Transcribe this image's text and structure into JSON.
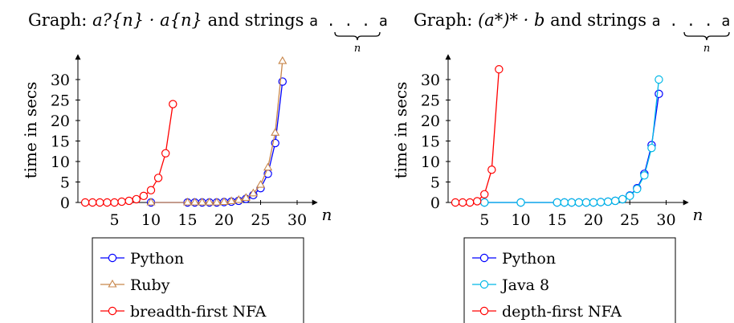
{
  "chart_data": [
    {
      "type": "line",
      "title_prefix": "Graph:",
      "title_math": "a?{n} · a{n}",
      "title_suffix": "and strings",
      "title_string": "a . . . a",
      "title_brace_label": "n",
      "xlabel": "n",
      "ylabel": "time in secs",
      "xlim": [
        0,
        32
      ],
      "ylim": [
        0,
        35
      ],
      "xticks": [
        "5",
        "10",
        "15",
        "20",
        "25",
        "30"
      ],
      "yticks": [
        "0",
        "5",
        "10",
        "15",
        "20",
        "25",
        "30"
      ],
      "legend_position": "bottom",
      "series": [
        {
          "name": "Python",
          "color": "#0000ff",
          "marker": "circle",
          "points": [
            [
              10,
              0
            ],
            [
              15,
              0
            ],
            [
              16,
              0
            ],
            [
              17,
              0
            ],
            [
              18,
              0
            ],
            [
              19,
              0
            ],
            [
              20,
              0.1
            ],
            [
              21,
              0.2
            ],
            [
              22,
              0.4
            ],
            [
              23,
              0.9
            ],
            [
              24,
              1.8
            ],
            [
              25,
              3.5
            ],
            [
              26,
              7
            ],
            [
              27,
              14.5
            ],
            [
              28,
              29.5
            ]
          ]
        },
        {
          "name": "Ruby",
          "color": "#c8864a",
          "marker": "triangle",
          "points": [
            [
              10,
              0
            ],
            [
              15,
              0
            ],
            [
              16,
              0
            ],
            [
              17,
              0
            ],
            [
              18,
              0
            ],
            [
              19,
              0
            ],
            [
              20,
              0.1
            ],
            [
              21,
              0.3
            ],
            [
              22,
              0.6
            ],
            [
              23,
              1.1
            ],
            [
              24,
              2.2
            ],
            [
              25,
              4.3
            ],
            [
              26,
              8.5
            ],
            [
              27,
              17
            ],
            [
              28,
              34.5
            ]
          ]
        },
        {
          "name": "breadth-first NFA",
          "color": "#ff0000",
          "marker": "circle",
          "points": [
            [
              1,
              0
            ],
            [
              2,
              0
            ],
            [
              3,
              0
            ],
            [
              4,
              0
            ],
            [
              5,
              0
            ],
            [
              6,
              0.2
            ],
            [
              7,
              0.4
            ],
            [
              8,
              0.8
            ],
            [
              9,
              1.6
            ],
            [
              10,
              3
            ],
            [
              11,
              6
            ],
            [
              12,
              12
            ],
            [
              13,
              24
            ]
          ]
        }
      ]
    },
    {
      "type": "line",
      "title_prefix": "Graph:",
      "title_math": "(a*)* · b",
      "title_suffix": "and strings",
      "title_string": "a . . . a",
      "title_brace_label": "n",
      "xlabel": "n",
      "ylabel": "time in secs",
      "xlim": [
        0,
        32
      ],
      "ylim": [
        0,
        35
      ],
      "xticks": [
        "5",
        "10",
        "15",
        "20",
        "25",
        "30"
      ],
      "yticks": [
        "0",
        "5",
        "10",
        "15",
        "20",
        "25",
        "30"
      ],
      "legend_position": "bottom",
      "series": [
        {
          "name": "Python",
          "color": "#0000ff",
          "marker": "circle",
          "points": [
            [
              5,
              0
            ],
            [
              10,
              0
            ],
            [
              15,
              0
            ],
            [
              16,
              0
            ],
            [
              17,
              0
            ],
            [
              18,
              0
            ],
            [
              19,
              0
            ],
            [
              20,
              0
            ],
            [
              21,
              0.1
            ],
            [
              22,
              0.2
            ],
            [
              23,
              0.4
            ],
            [
              24,
              0.8
            ],
            [
              25,
              1.7
            ],
            [
              26,
              3.5
            ],
            [
              27,
              7
            ],
            [
              28,
              14
            ],
            [
              29,
              26.5
            ]
          ]
        },
        {
          "name": "Java 8",
          "color": "#00b8e6",
          "marker": "circle",
          "points": [
            [
              5,
              0
            ],
            [
              10,
              0
            ],
            [
              15,
              0
            ],
            [
              16,
              0
            ],
            [
              17,
              0
            ],
            [
              18,
              0
            ],
            [
              19,
              0
            ],
            [
              20,
              0
            ],
            [
              21,
              0.1
            ],
            [
              22,
              0.2
            ],
            [
              23,
              0.4
            ],
            [
              24,
              0.8
            ],
            [
              25,
              1.6
            ],
            [
              26,
              3.3
            ],
            [
              27,
              6.6
            ],
            [
              28,
              13.3
            ],
            [
              29,
              30
            ]
          ]
        },
        {
          "name": "depth-first NFA",
          "color": "#ff0000",
          "marker": "circle",
          "points": [
            [
              1,
              0
            ],
            [
              2,
              0
            ],
            [
              3,
              0
            ],
            [
              4,
              0.3
            ],
            [
              5,
              2
            ],
            [
              6,
              8
            ],
            [
              7,
              32.5
            ]
          ]
        }
      ]
    }
  ]
}
